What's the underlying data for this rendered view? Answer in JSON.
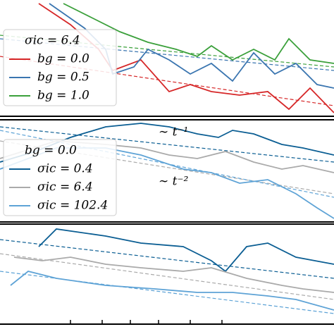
{
  "chart_data": [
    {
      "type": "line",
      "xlim": [
        0,
        474
      ],
      "ylim": [
        0,
        165
      ],
      "legend_title": "σic = 6.4",
      "legend": "upper left",
      "series": [
        {
          "name": "bg = 0.0",
          "color": "#d62728",
          "x": [
            55,
            100,
            140,
            160,
            200,
            240,
            270,
            300,
            340,
            380,
            410,
            440,
            474
          ],
          "values": [
            160,
            130,
            95,
            65,
            80,
            35,
            45,
            35,
            30,
            35,
            10,
            40,
            5
          ]
        },
        {
          "name": "bg = 0.5",
          "color": "#3a75b0",
          "x": [
            70,
            120,
            150,
            160,
            190,
            210,
            240,
            270,
            300,
            330,
            360,
            390,
            420,
            450,
            474
          ],
          "values": [
            160,
            125,
            95,
            60,
            70,
            95,
            80,
            60,
            75,
            50,
            90,
            60,
            75,
            45,
            40
          ]
        },
        {
          "name": "bg = 1.0",
          "color": "#3ba03b",
          "x": [
            90,
            130,
            170,
            210,
            250,
            280,
            300,
            330,
            360,
            390,
            410,
            440,
            474
          ],
          "values": [
            160,
            140,
            120,
            105,
            95,
            85,
            100,
            80,
            95,
            80,
            110,
            80,
            75
          ]
        }
      ],
      "fits": [
        {
          "color": "#d62728",
          "x": [
            0,
            474
          ],
          "values": [
            85,
            15
          ]
        },
        {
          "color": "#3a75b0",
          "x": [
            0,
            474
          ],
          "values": [
            110,
            65
          ]
        },
        {
          "color": "#3ba03b",
          "x": [
            0,
            474
          ],
          "values": [
            115,
            70
          ]
        }
      ]
    },
    {
      "type": "line",
      "xlim": [
        0,
        474
      ],
      "ylim": [
        0,
        145
      ],
      "legend_title": "bg = 0.0",
      "legend": "lower left",
      "annotations": [
        "∼ t⁻¹",
        "∼ t⁻²"
      ],
      "series": [
        {
          "name": "σic = 0.4",
          "color": "#0b5e93",
          "x": [
            0,
            50,
            100,
            150,
            200,
            240,
            280,
            310,
            330,
            360,
            400,
            430,
            474
          ],
          "values": [
            85,
            100,
            120,
            135,
            140,
            135,
            125,
            120,
            130,
            125,
            110,
            105,
            95
          ]
        },
        {
          "name": "σic = 6.4",
          "color": "#aaaaaa",
          "x": [
            0,
            80,
            150,
            200,
            240,
            280,
            320,
            360,
            400,
            430,
            474
          ],
          "values": [
            90,
            115,
            110,
            105,
            95,
            90,
            100,
            85,
            75,
            80,
            70
          ]
        },
        {
          "name": "σic = 102.4",
          "color": "#5ea3d6",
          "x": [
            0,
            80,
            150,
            200,
            260,
            300,
            340,
            380,
            420,
            450,
            474
          ],
          "values": [
            75,
            105,
            105,
            95,
            75,
            70,
            55,
            60,
            40,
            20,
            5
          ]
        }
      ],
      "fits": [
        {
          "color": "#0b5e93",
          "x": [
            0,
            474
          ],
          "values": [
            135,
            85
          ]
        },
        {
          "color": "#aaaaaa",
          "x": [
            0,
            474
          ],
          "values": [
            115,
            40
          ]
        },
        {
          "color": "#5ea3d6",
          "x": [
            0,
            474
          ],
          "values": [
            130,
            35
          ]
        }
      ]
    },
    {
      "type": "line",
      "xlim": [
        0,
        474
      ],
      "ylim": [
        0,
        142
      ],
      "xticks": [
        100,
        145,
        185,
        225,
        270,
        315
      ],
      "series": [
        {
          "color": "#0b5e93",
          "x": [
            55,
            80,
            150,
            200,
            260,
            300,
            320,
            350,
            380,
            420,
            474
          ],
          "values": [
            110,
            135,
            125,
            115,
            110,
            90,
            75,
            110,
            115,
            95,
            85
          ]
        },
        {
          "color": "#aaaaaa",
          "x": [
            20,
            60,
            100,
            150,
            200,
            260,
            300,
            350,
            400,
            430,
            474
          ],
          "values": [
            95,
            90,
            95,
            85,
            80,
            75,
            80,
            65,
            55,
            50,
            45
          ]
        },
        {
          "color": "#5ea3d6",
          "x": [
            15,
            40,
            80,
            150,
            220,
            280,
            330,
            380,
            420,
            474
          ],
          "values": [
            55,
            75,
            65,
            55,
            50,
            45,
            45,
            40,
            35,
            20
          ]
        }
      ],
      "fits": [
        {
          "color": "#0b5e93",
          "x": [
            0,
            474
          ],
          "values": [
            120,
            65
          ]
        },
        {
          "color": "#aaaaaa",
          "x": [
            0,
            474
          ],
          "values": [
            100,
            35
          ]
        },
        {
          "color": "#5ea3d6",
          "x": [
            0,
            474
          ],
          "values": [
            75,
            15
          ]
        }
      ]
    }
  ]
}
